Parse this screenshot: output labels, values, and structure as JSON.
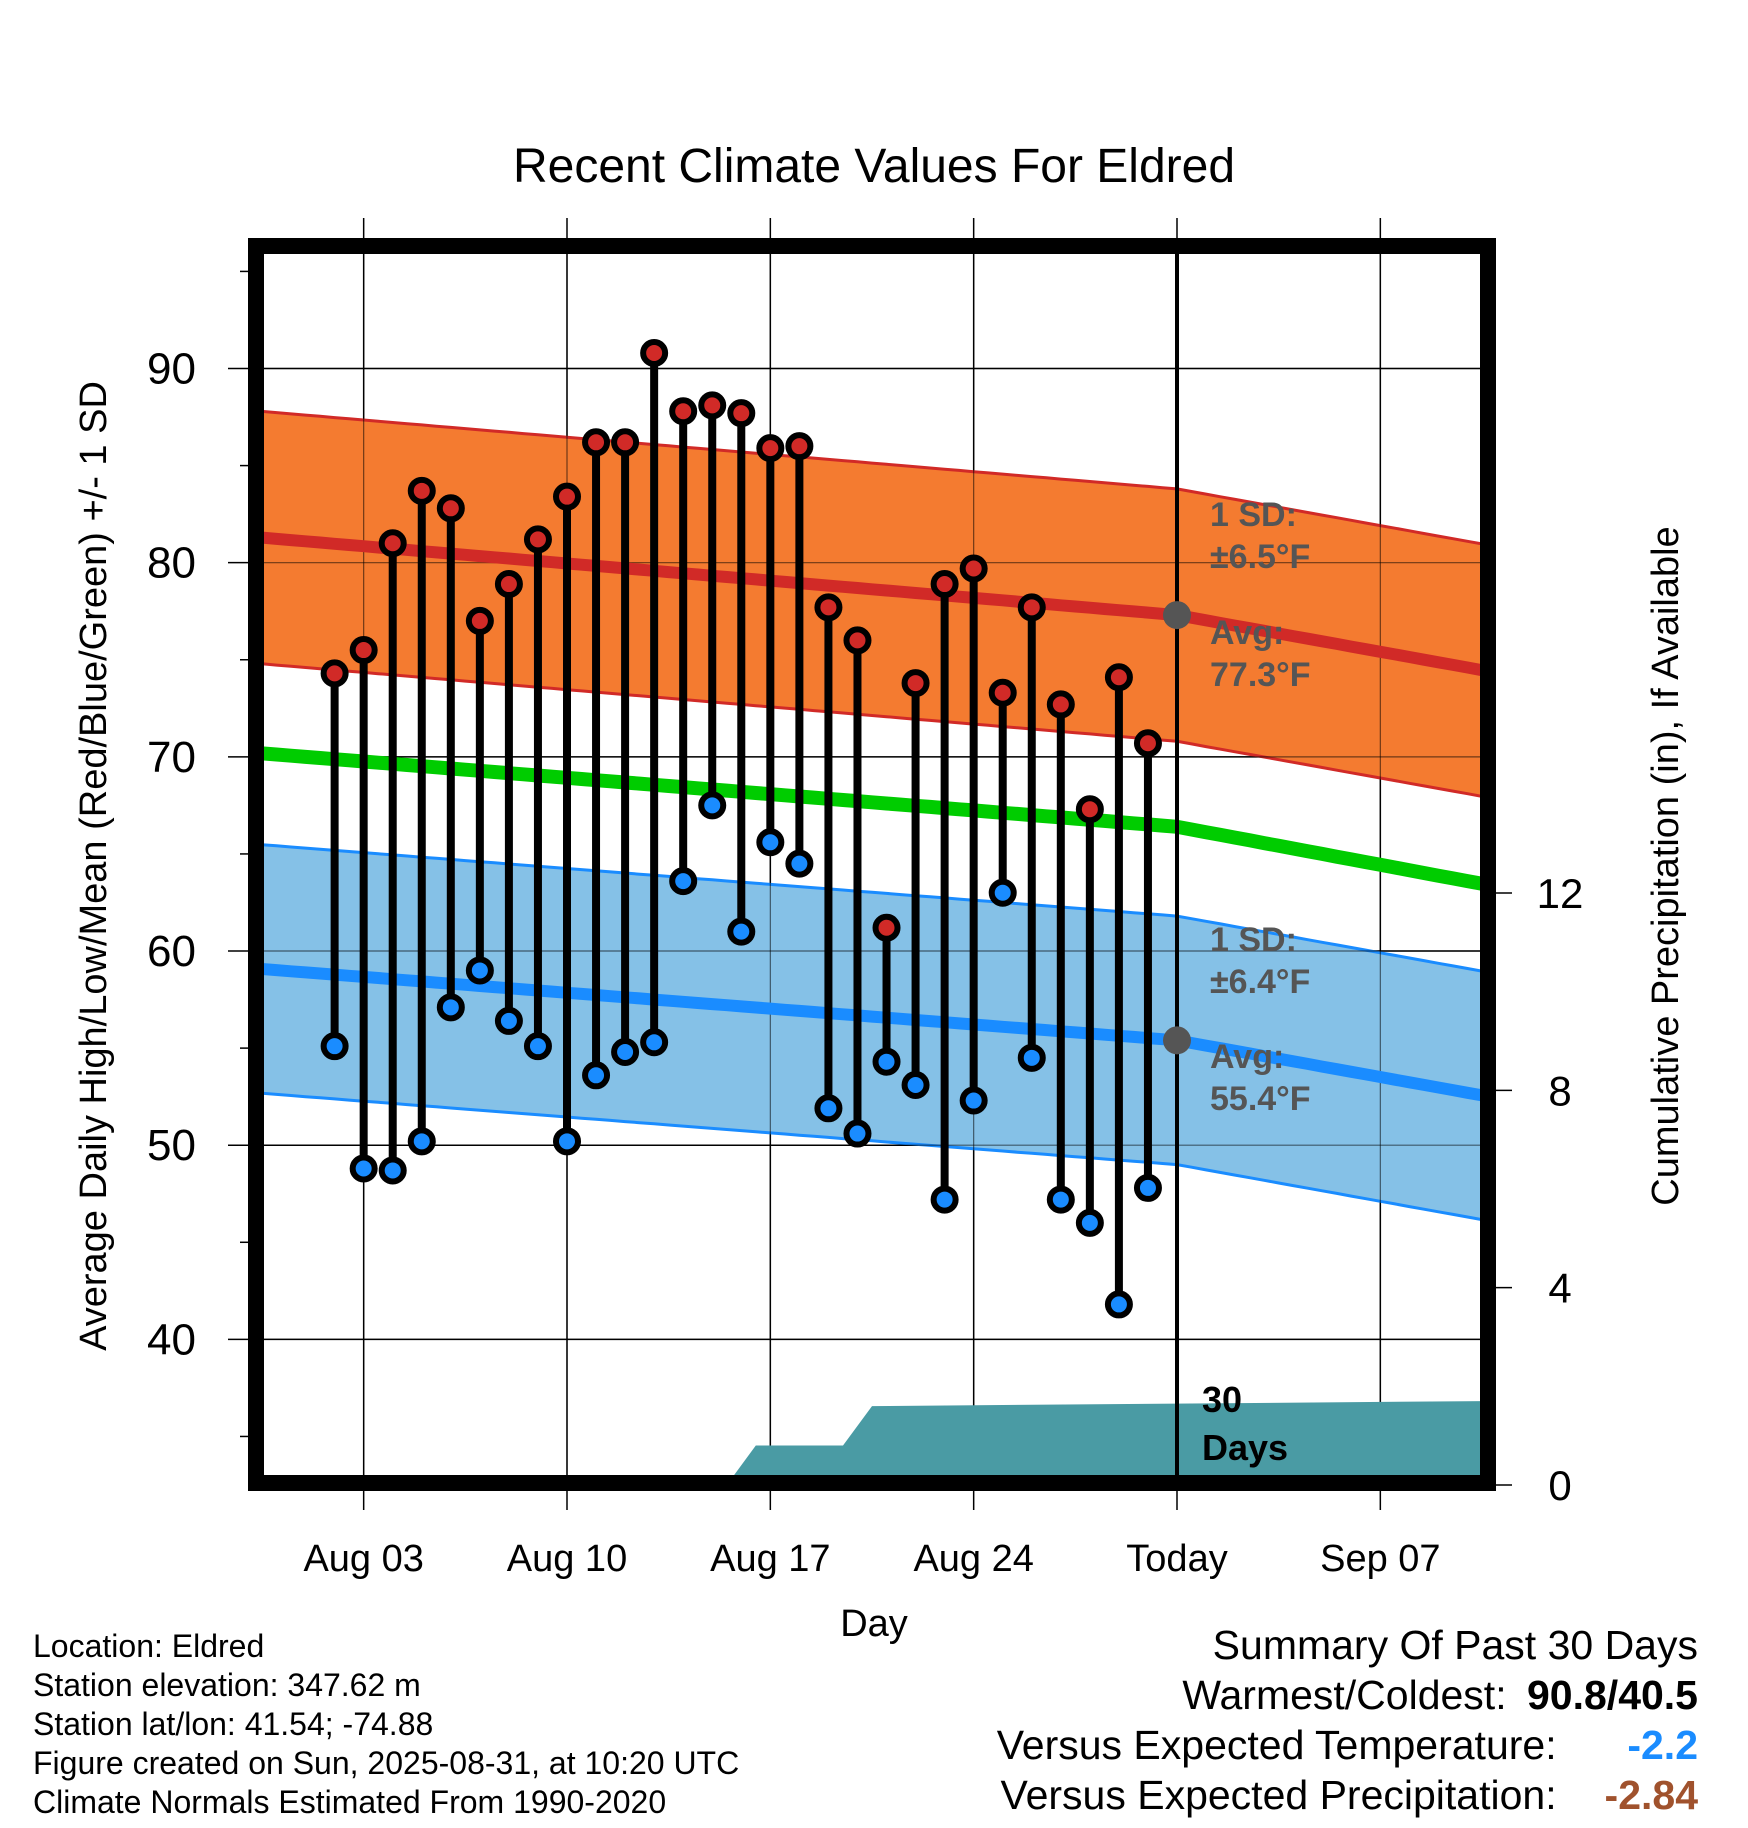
{
  "chart_data": {
    "type": "line",
    "title": "Recent Climate Values For Eldred",
    "xlabel": "Day",
    "ylabel": "Average Daily High/Low/Mean (Red/Blue/Green) +/- 1 SD",
    "ylabel_right": "Cumulative Precipitation (in), If Available",
    "x_tick_labels": [
      "Aug 03",
      "Aug 10",
      "Aug 17",
      "Aug 24",
      "Today",
      "Sep 07"
    ],
    "x_tick_days": [
      3,
      10,
      17,
      24,
      31,
      38
    ],
    "xlim_days": [
      -0.5,
      41.5
    ],
    "y_ticks": [
      40,
      50,
      60,
      70,
      80,
      90
    ],
    "ylim": [
      32.5,
      96
    ],
    "y_right_ticks": [
      0,
      4,
      8,
      12
    ],
    "y_right_range_in": [
      0,
      12
    ],
    "grid": true,
    "colors": {
      "high_band": "#f47b30",
      "high_line": "#d12a27",
      "low_band": "#85c1e7",
      "low_line": "#1a8cff",
      "mean_line": "#00cc00",
      "precip": "#4a9ba4",
      "high_marker": "#d12a27",
      "low_marker": "#1a8cff",
      "avg_marker": "#555555",
      "annotation": "#555555",
      "warm_value": "#000000",
      "temp_value": "#1a8cff",
      "precip_value": "#a0522d"
    },
    "normal_high": {
      "days": [
        1,
        31,
        41
      ],
      "values": [
        81.1,
        77.3,
        74.6
      ]
    },
    "normal_high_sd": 6.5,
    "normal_low": {
      "days": [
        1,
        31,
        41
      ],
      "values": [
        58.9,
        55.4,
        52.7
      ]
    },
    "normal_low_sd": 6.4,
    "normal_mean": {
      "days": [
        1,
        31,
        41
      ],
      "values": [
        70.0,
        66.4,
        63.6
      ]
    },
    "series": [
      {
        "name": "High",
        "days": [
          2,
          3,
          4,
          5,
          6,
          7,
          8,
          9,
          10,
          11,
          12,
          13,
          14,
          15,
          16,
          17,
          18,
          19,
          20,
          21,
          22,
          23,
          24,
          25,
          26,
          27,
          28,
          29,
          30
        ],
        "values": [
          74.3,
          75.5,
          81.0,
          83.7,
          82.8,
          77.0,
          78.9,
          81.2,
          83.4,
          86.2,
          86.2,
          90.8,
          87.8,
          88.1,
          87.7,
          85.9,
          86.0,
          77.7,
          76.0,
          61.2,
          73.8,
          78.9,
          79.7,
          73.3,
          77.7,
          72.7,
          67.3,
          74.1,
          70.7
        ]
      },
      {
        "name": "Low",
        "days": [
          2,
          3,
          4,
          5,
          6,
          7,
          8,
          9,
          10,
          11,
          12,
          13,
          14,
          15,
          16,
          17,
          18,
          19,
          20,
          21,
          22,
          23,
          24,
          25,
          26,
          27,
          28,
          29,
          30
        ],
        "values": [
          55.1,
          48.8,
          48.7,
          50.2,
          57.1,
          59.0,
          56.4,
          55.1,
          50.2,
          53.6,
          54.8,
          55.3,
          63.6,
          67.5,
          61.0,
          65.6,
          64.5,
          51.9,
          50.6,
          54.3,
          53.1,
          47.2,
          52.3,
          63.0,
          54.5,
          47.2,
          46.0,
          41.8,
          47.8
        ]
      },
      {
        "name": "Cumulative Precipitation",
        "days": [
          15.5,
          16.5,
          18.5,
          19.5,
          20.5,
          41.5
        ],
        "values": [
          0,
          0.8,
          0.8,
          0.8,
          1.6,
          1.7
        ]
      }
    ],
    "today_day": 31,
    "annotations": {
      "high_sd": "1 SD:",
      "high_sd_value": "±6.5°F",
      "high_avg": "Avg:",
      "high_avg_value": "77.3°F",
      "low_sd": "1 SD:",
      "low_sd_value": "±6.4°F",
      "low_avg": "Avg:",
      "low_avg_value": "55.4°F",
      "days_count": "30",
      "days_word": "Days"
    }
  },
  "footer": {
    "location": "Location: Eldred",
    "elevation": "Station elevation: 347.62 m",
    "latlon": "Station lat/lon: 41.54; -74.88",
    "created": "Figure created on Sun, 2025-08-31, at 10:20 UTC",
    "normals": "Climate Normals Estimated From 1990-2020"
  },
  "summary": {
    "title": "Summary Of Past 30 Days",
    "warm_cold_label": "Warmest/Coldest:",
    "warm_cold_value": "90.8/40.5",
    "temp_label": "Versus Expected Temperature:",
    "temp_value": "-2.2",
    "precip_label": "Versus Expected Precipitation:",
    "precip_value": "-2.84"
  }
}
